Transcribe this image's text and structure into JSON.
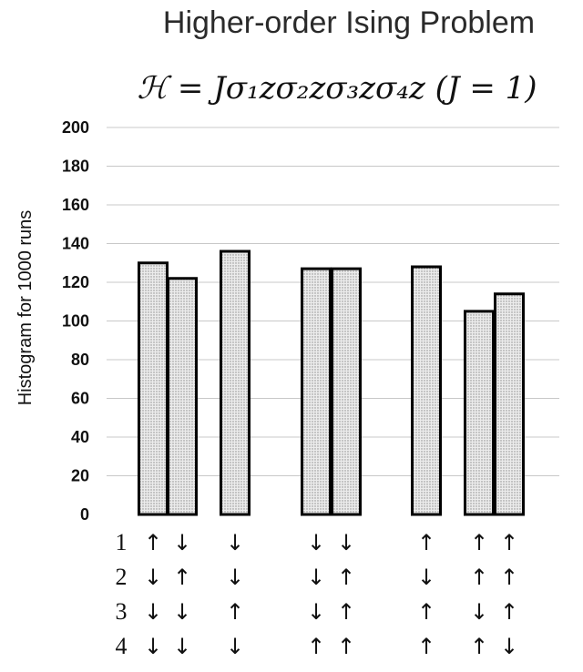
{
  "chart_data": {
    "type": "bar",
    "title": "Higher-order Ising Problem",
    "subtitle": "ℋ = Jσ₁zσ₂zσ₃zσ₄z (J = 1)",
    "ylabel": "Histogram for 1000 runs",
    "xlabel": "",
    "ylim": [
      0,
      200
    ],
    "yticks": [
      0,
      20,
      40,
      60,
      80,
      100,
      120,
      140,
      160,
      180,
      200
    ],
    "grid": true,
    "row_labels": [
      "1",
      "2",
      "3",
      "4"
    ],
    "bars": [
      {
        "value": 130,
        "spins": [
          "↑",
          "↓",
          "↓",
          "↓"
        ]
      },
      {
        "value": 122,
        "spins": [
          "↓",
          "↑",
          "↓",
          "↓"
        ]
      },
      {
        "value": 136,
        "spins": [
          "↓",
          "↓",
          "↑",
          "↓"
        ]
      },
      {
        "value": 127,
        "spins": [
          "↓",
          "↓",
          "↓",
          "↑"
        ]
      },
      {
        "value": 127,
        "spins": [
          "↓",
          "↑",
          "↑",
          "↑"
        ]
      },
      {
        "value": 128,
        "spins": [
          "↑",
          "↓",
          "↑",
          "↑"
        ]
      },
      {
        "value": 105,
        "spins": [
          "↑",
          "↑",
          "↓",
          "↑"
        ]
      },
      {
        "value": 114,
        "spins": [
          "↑",
          "↑",
          "↑",
          "↓"
        ]
      }
    ]
  }
}
